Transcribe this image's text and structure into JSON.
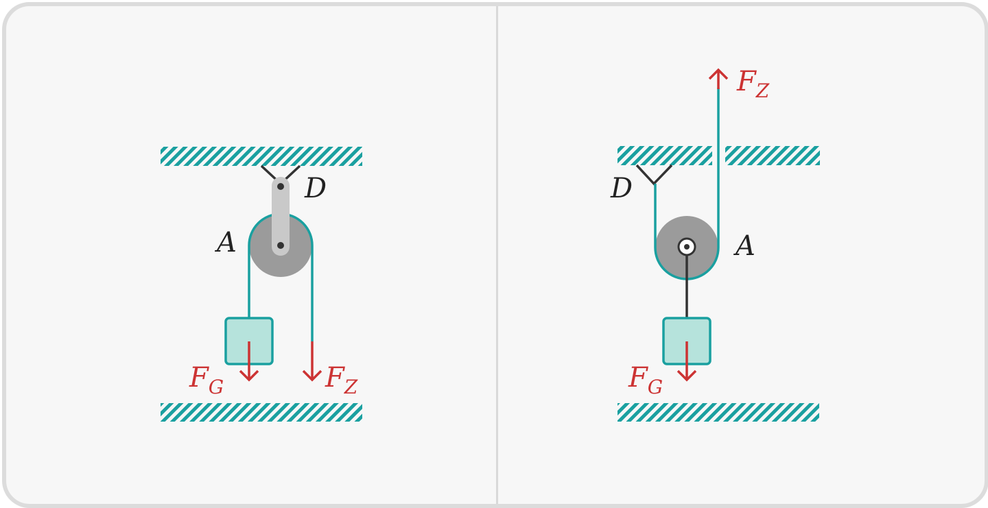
{
  "colors": {
    "rope": "#1aa0a0",
    "force": "#cc3333",
    "pulley": "#9b9b9b",
    "bracket": "#c9c9c9",
    "mass_fill": "#b6e3dc",
    "ceiling": "#1aa0a0",
    "frame_border": "#dcdcdc",
    "background": "#f7f7f7"
  },
  "left_panel": {
    "pulley_label": "A",
    "anchor_label": "D",
    "weight_force": {
      "main": "F",
      "sub": "G"
    },
    "pull_force": {
      "main": "F",
      "sub": "Z"
    }
  },
  "right_panel": {
    "pulley_label": "A",
    "anchor_label": "D",
    "weight_force": {
      "main": "F",
      "sub": "G"
    },
    "pull_force": {
      "main": "F",
      "sub": "Z"
    }
  }
}
